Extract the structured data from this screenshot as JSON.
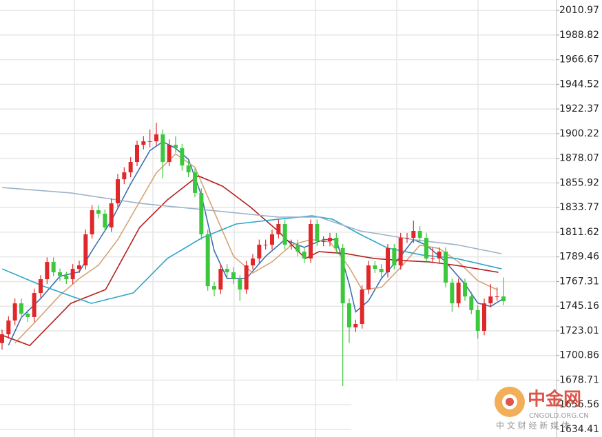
{
  "chart_data": {
    "type": "candlestick",
    "open": [
      1712.0,
      1719.9,
      1732.3,
      1747.7,
      1738.4,
      1735.4,
      1757.0,
      1769.4,
      1784.9,
      1775.6,
      1772.5,
      1769.4,
      1778.7,
      1781.8,
      1809.7,
      1831.4,
      1828.3,
      1815.9,
      1837.6,
      1859.2,
      1865.4,
      1874.7,
      1890.2,
      1893.3,
      1893.3,
      1899.5,
      1874.7,
      1890.2,
      1887.1,
      1871.6,
      1865.4,
      1846.9,
      1809.7,
      1763.2,
      1760.1,
      1778.7,
      1775.6,
      1769.4,
      1760.1,
      1781.8,
      1788.0,
      1800.4,
      1800.4,
      1809.7,
      1819.0,
      1800.4,
      1800.4,
      1794.2,
      1788.0,
      1819.0,
      1803.5,
      1803.5,
      1806.6,
      1797.3,
      1747.7,
      1726.1,
      1729.2,
      1760.1,
      1781.8,
      1778.7,
      1775.6,
      1797.3,
      1781.8,
      1806.6,
      1806.6,
      1812.8,
      1806.6,
      1788.0,
      1788.0,
      1794.2,
      1766.3,
      1747.7,
      1766.3,
      1753.9,
      1741.6,
      1723.0,
      1747.7,
      1753.9,
      1753.9
    ],
    "high": [
      1724,
      1736,
      1752,
      1752,
      1742,
      1761,
      1773,
      1789,
      1789,
      1779,
      1776,
      1783,
      1786,
      1814,
      1836,
      1836,
      1832,
      1842,
      1864,
      1870,
      1879,
      1894,
      1898,
      1904,
      1910,
      1904,
      1895,
      1898,
      1891,
      1876,
      1869,
      1851,
      1814,
      1767,
      1783,
      1783,
      1780,
      1773,
      1786,
      1792,
      1805,
      1805,
      1814,
      1823,
      1823,
      1805,
      1805,
      1798,
      1823,
      1823,
      1808,
      1811,
      1811,
      1801,
      1752,
      1733,
      1764,
      1786,
      1786,
      1783,
      1801,
      1801,
      1811,
      1811,
      1822,
      1817,
      1811,
      1798,
      1798,
      1798,
      1770,
      1770,
      1770,
      1758,
      1746,
      1752,
      1765,
      1762,
      1771
    ],
    "low": [
      1706,
      1716,
      1728,
      1734,
      1731,
      1731,
      1753,
      1765,
      1772,
      1768,
      1765,
      1765,
      1775,
      1778,
      1806,
      1824,
      1812,
      1812,
      1834,
      1855,
      1861,
      1871,
      1886,
      1888,
      1889,
      1860,
      1871,
      1883,
      1867,
      1861,
      1843,
      1805,
      1759,
      1754,
      1756,
      1771,
      1765,
      1750,
      1756,
      1778,
      1784,
      1796,
      1796,
      1806,
      1796,
      1796,
      1790,
      1784,
      1784,
      1799,
      1799,
      1799,
      1793,
      1673.4,
      1712,
      1722,
      1725,
      1756,
      1775,
      1771,
      1771,
      1778,
      1778,
      1802,
      1802,
      1802,
      1784,
      1784,
      1784,
      1762,
      1740,
      1744,
      1750,
      1738,
      1716,
      1719,
      1744,
      1750,
      1746
    ],
    "close": [
      1719.9,
      1732.3,
      1747.7,
      1738.4,
      1735.4,
      1757.0,
      1769.4,
      1784.9,
      1775.6,
      1772.5,
      1769.4,
      1778.7,
      1781.8,
      1809.7,
      1831.4,
      1828.3,
      1815.9,
      1837.6,
      1859.2,
      1865.4,
      1874.7,
      1890.2,
      1893.3,
      1893.3,
      1899.5,
      1874.7,
      1890.2,
      1887.1,
      1871.6,
      1865.4,
      1846.9,
      1809.7,
      1763.2,
      1760.1,
      1778.7,
      1775.6,
      1769.4,
      1760.1,
      1781.8,
      1788.0,
      1800.4,
      1800.4,
      1809.7,
      1819.0,
      1800.4,
      1800.4,
      1794.2,
      1788.0,
      1819.0,
      1803.5,
      1803.5,
      1806.6,
      1797.3,
      1747.7,
      1726.1,
      1729.2,
      1760.1,
      1781.8,
      1778.7,
      1775.6,
      1797.3,
      1781.8,
      1806.6,
      1806.6,
      1812.8,
      1806.6,
      1788.0,
      1788.0,
      1794.2,
      1766.3,
      1747.7,
      1766.3,
      1753.9,
      1741.6,
      1723.0,
      1747.7,
      1753.9,
      1753.9,
      1749.6
    ],
    "up_color": "#e0282a",
    "down_color": "#3cc83c",
    "series": [
      {
        "color": "#3b6fb0",
        "x": [
          1,
          3,
          6,
          9,
          12,
          14,
          17,
          20,
          23,
          25,
          27,
          29,
          31,
          33,
          35,
          38,
          41,
          44,
          47,
          50,
          52,
          54,
          55,
          57,
          59,
          62,
          64,
          66,
          69,
          72,
          74,
          76,
          78
        ],
        "values": [
          1710,
          1735,
          1752,
          1772,
          1776,
          1795,
          1822,
          1855,
          1885,
          1893,
          1887,
          1877,
          1845,
          1795,
          1770,
          1770,
          1790,
          1805,
          1798,
          1805,
          1805,
          1765,
          1740,
          1750,
          1770,
          1790,
          1805,
          1800,
          1785,
          1765,
          1748,
          1745,
          1752
        ]
      },
      {
        "color": "#d4a373",
        "x": [
          2,
          5,
          9,
          12,
          15,
          18,
          21,
          24,
          27,
          30,
          33,
          36,
          39,
          42,
          45,
          48,
          51,
          54,
          56,
          59,
          62,
          65,
          68,
          71,
          74,
          77
        ],
        "values": [
          1712,
          1730,
          1755,
          1770,
          1782,
          1805,
          1835,
          1865,
          1882,
          1870,
          1830,
          1790,
          1775,
          1785,
          1800,
          1805,
          1803,
          1780,
          1760,
          1762,
          1780,
          1800,
          1797,
          1785,
          1768,
          1760
        ]
      },
      {
        "color": "#b3201f",
        "x": [
          0,
          4.3,
          10.7,
          16.1,
          21.4,
          25.7,
          30.5,
          34.3,
          38.6,
          42.9,
          47.2,
          49.3,
          53.6,
          57.9,
          62.2,
          66.5,
          70.7,
          77.2
        ],
        "values": [
          1719.1,
          1709.8,
          1747.7,
          1760.1,
          1815.9,
          1840.6,
          1862.3,
          1853.0,
          1834.4,
          1812.8,
          1788.0,
          1794.2,
          1792.3,
          1788.0,
          1786.2,
          1784.9,
          1781.8,
          1775.6
        ]
      },
      {
        "color": "#2aa6c9",
        "x": [
          0,
          6.4,
          13.9,
          20.4,
          25.7,
          31.1,
          36.4,
          42.9,
          48.2,
          51.4,
          55.7,
          60.0,
          65.4,
          70.7,
          77.7
        ],
        "values": [
          1778.7,
          1763.2,
          1747.7,
          1757.0,
          1788.0,
          1806.6,
          1819.0,
          1823.3,
          1826.4,
          1823.3,
          1809.7,
          1797.3,
          1791.1,
          1788.0,
          1778.7
        ]
      },
      {
        "color": "#9db3c8",
        "x": [
          0,
          10.7,
          21.4,
          32.2,
          42.9,
          49.3,
          55.7,
          64.3,
          70.7,
          77.7
        ],
        "values": [
          1851.8,
          1846.9,
          1837.6,
          1831.4,
          1825.2,
          1825.2,
          1812.8,
          1804.7,
          1800.4,
          1792.3
        ]
      }
    ],
    "ylim": [
      1627.6,
      2020.3
    ],
    "yticks": [
      2010.97,
      1988.82,
      1966.67,
      1944.52,
      1922.37,
      1900.22,
      1878.07,
      1855.92,
      1833.77,
      1811.62,
      1789.46,
      1767.31,
      1745.16,
      1723.01,
      1700.86,
      1678.71,
      1656.56,
      1634.41
    ],
    "grid": true
  },
  "watermark": {
    "title": "中金网",
    "domain": "CNGOLD.ORG.CN",
    "tagline": "中 文 财 经 新 媒 体"
  }
}
